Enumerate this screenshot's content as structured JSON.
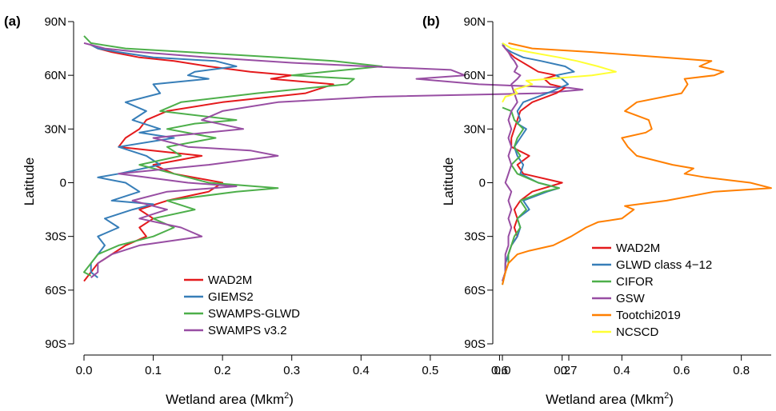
{
  "chart_data": [
    {
      "type": "line",
      "panel_label": "(a)",
      "xlabel": "Wetland area (Mkm",
      "xlabel_sup": "2",
      "xlabel_tail": ")",
      "ylabel": "Latitude",
      "xlim": [
        0,
        0.75
      ],
      "ylim": [
        -90,
        90
      ],
      "xticks": [
        0,
        0.1,
        0.2,
        0.3,
        0.4,
        0.5,
        0.6,
        0.7
      ],
      "xtick_labels": [
        "0.0",
        "0.1",
        "0.2",
        "0.3",
        "0.4",
        "0.5",
        "0.6",
        "0.7"
      ],
      "yticks": [
        90,
        60,
        30,
        0,
        -30,
        -60,
        -90
      ],
      "ytick_labels": [
        "90N",
        "60N",
        "30N",
        "0",
        "30S",
        "60S",
        "90S"
      ],
      "legend_position": "bottom-right",
      "series": [
        {
          "name": "WAD2M",
          "color": "#e41a1c",
          "lat": [
            -55,
            -50,
            -45,
            -40,
            -35,
            -30,
            -25,
            -20,
            -15,
            -10,
            -5,
            0,
            5,
            10,
            15,
            20,
            25,
            30,
            35,
            40,
            45,
            50,
            55,
            58,
            60,
            62,
            65,
            68,
            70,
            73,
            75,
            77
          ],
          "x": [
            0.0,
            0.01,
            0.02,
            0.04,
            0.06,
            0.09,
            0.08,
            0.1,
            0.08,
            0.12,
            0.18,
            0.2,
            0.13,
            0.1,
            0.17,
            0.05,
            0.06,
            0.08,
            0.09,
            0.12,
            0.2,
            0.32,
            0.36,
            0.27,
            0.3,
            0.24,
            0.18,
            0.13,
            0.08,
            0.04,
            0.02,
            0.01
          ]
        },
        {
          "name": "GIEMS2",
          "color": "#377eb8",
          "lat": [
            -53,
            -50,
            -45,
            -40,
            -35,
            -30,
            -25,
            -20,
            -15,
            -12,
            -10,
            -5,
            0,
            3,
            5,
            10,
            15,
            20,
            25,
            28,
            30,
            35,
            40,
            45,
            50,
            55,
            58,
            60,
            62,
            65,
            68,
            70,
            73,
            75,
            77
          ],
          "x": [
            0.02,
            0.01,
            0.01,
            0.02,
            0.03,
            0.02,
            0.05,
            0.03,
            0.07,
            0.1,
            0.04,
            0.08,
            0.06,
            0.02,
            0.05,
            0.11,
            0.09,
            0.05,
            0.13,
            0.08,
            0.11,
            0.07,
            0.09,
            0.06,
            0.11,
            0.1,
            0.18,
            0.15,
            0.16,
            0.22,
            0.19,
            0.1,
            0.05,
            0.02,
            0.01
          ]
        },
        {
          "name": "SWAMPS-GLWD",
          "color": "#4daf4a",
          "lat": [
            -52,
            -50,
            -45,
            -40,
            -35,
            -30,
            -25,
            -20,
            -15,
            -10,
            -5,
            -3,
            0,
            5,
            10,
            15,
            20,
            25,
            30,
            33,
            35,
            40,
            45,
            50,
            55,
            58,
            60,
            62,
            65,
            68,
            70,
            73,
            75,
            78,
            82
          ],
          "x": [
            0.01,
            0.0,
            0.01,
            0.02,
            0.05,
            0.1,
            0.13,
            0.1,
            0.16,
            0.12,
            0.22,
            0.28,
            0.18,
            0.13,
            0.08,
            0.14,
            0.12,
            0.19,
            0.12,
            0.16,
            0.22,
            0.11,
            0.14,
            0.25,
            0.38,
            0.39,
            0.3,
            0.35,
            0.43,
            0.36,
            0.28,
            0.15,
            0.06,
            0.01,
            0.0
          ]
        },
        {
          "name": "SWAMPS v3.2",
          "color": "#984ea3",
          "lat": [
            -53,
            -50,
            -45,
            -40,
            -35,
            -30,
            -25,
            -20,
            -15,
            -10,
            -5,
            -2,
            0,
            5,
            10,
            15,
            18,
            20,
            25,
            30,
            35,
            40,
            45,
            48,
            50,
            52,
            53,
            55,
            58,
            60,
            63,
            65,
            67,
            70,
            73,
            75,
            78
          ],
          "x": [
            0.01,
            0.02,
            0.02,
            0.04,
            0.08,
            0.17,
            0.14,
            0.08,
            0.12,
            0.07,
            0.12,
            0.22,
            0.15,
            0.05,
            0.18,
            0.28,
            0.24,
            0.15,
            0.1,
            0.23,
            0.17,
            0.2,
            0.28,
            0.42,
            0.66,
            0.72,
            0.7,
            0.57,
            0.48,
            0.55,
            0.53,
            0.41,
            0.3,
            0.18,
            0.08,
            0.03,
            0.0
          ]
        }
      ]
    },
    {
      "type": "line",
      "panel_label": "(b)",
      "xlabel": "Wetland area (Mkm",
      "xlabel_sup": "2",
      "xlabel_tail": ")",
      "ylabel": "Latitude",
      "xlim": [
        0,
        0.9
      ],
      "ylim": [
        -90,
        90
      ],
      "xticks": [
        0,
        0.2,
        0.4,
        0.6,
        0.8
      ],
      "xtick_labels": [
        "0.0",
        "0.2",
        "0.4",
        "0.6",
        "0.8"
      ],
      "yticks": [
        90,
        60,
        30,
        0,
        -30,
        -60,
        -90
      ],
      "ytick_labels": [
        "90N",
        "60N",
        "30N",
        "0",
        "30S",
        "60S",
        "90S"
      ],
      "legend_position": "bottom-right",
      "series": [
        {
          "name": "WAD2M",
          "color": "#e41a1c",
          "lat": [
            -55,
            -50,
            -45,
            -40,
            -35,
            -30,
            -25,
            -20,
            -15,
            -10,
            -5,
            0,
            5,
            10,
            15,
            20,
            25,
            30,
            35,
            40,
            45,
            50,
            53,
            55,
            58,
            60,
            62,
            65,
            68,
            70,
            73,
            75,
            77
          ],
          "x": [
            0.0,
            0.01,
            0.01,
            0.02,
            0.03,
            0.05,
            0.04,
            0.05,
            0.04,
            0.06,
            0.1,
            0.2,
            0.07,
            0.05,
            0.09,
            0.03,
            0.03,
            0.04,
            0.05,
            0.06,
            0.1,
            0.18,
            0.21,
            0.16,
            0.14,
            0.18,
            0.12,
            0.09,
            0.06,
            0.04,
            0.02,
            0.01,
            0.0
          ]
        },
        {
          "name": "GLWD class 4−12",
          "color": "#377eb8",
          "lat": [
            -55,
            -50,
            -45,
            -40,
            -35,
            -30,
            -25,
            -20,
            -15,
            -10,
            -5,
            -3,
            0,
            5,
            10,
            15,
            20,
            25,
            30,
            33,
            35,
            40,
            45,
            50,
            55,
            58,
            60,
            62,
            65,
            68,
            70,
            73,
            75,
            78
          ],
          "x": [
            0.0,
            0.01,
            0.01,
            0.02,
            0.03,
            0.05,
            0.06,
            0.05,
            0.09,
            0.07,
            0.15,
            0.19,
            0.12,
            0.06,
            0.07,
            0.05,
            0.04,
            0.06,
            0.08,
            0.05,
            0.06,
            0.05,
            0.07,
            0.15,
            0.22,
            0.2,
            0.18,
            0.24,
            0.21,
            0.13,
            0.07,
            0.03,
            0.01,
            0.0
          ]
        },
        {
          "name": "CIFOR",
          "color": "#4daf4a",
          "lat": [
            -57,
            -50,
            -45,
            -40,
            -35,
            -30,
            -25,
            -20,
            -15,
            -10,
            -5,
            -3,
            0,
            5,
            10,
            15,
            20,
            25,
            30,
            35,
            40,
            42
          ],
          "x": [
            0.0,
            0.01,
            0.02,
            0.02,
            0.03,
            0.04,
            0.06,
            0.05,
            0.08,
            0.06,
            0.14,
            0.19,
            0.12,
            0.05,
            0.03,
            0.06,
            0.04,
            0.05,
            0.07,
            0.04,
            0.03,
            0.0
          ]
        },
        {
          "name": "GSW",
          "color": "#984ea3",
          "lat": [
            -55,
            -50,
            -45,
            -40,
            -35,
            -30,
            -25,
            -20,
            -15,
            -10,
            -5,
            0,
            5,
            10,
            15,
            20,
            25,
            30,
            35,
            40,
            45,
            50,
            55,
            58,
            60,
            62,
            65,
            68,
            70,
            73,
            75,
            77
          ],
          "x": [
            0.0,
            0.01,
            0.01,
            0.01,
            0.02,
            0.02,
            0.03,
            0.02,
            0.03,
            0.02,
            0.03,
            0.01,
            0.02,
            0.03,
            0.02,
            0.03,
            0.02,
            0.03,
            0.02,
            0.03,
            0.05,
            0.04,
            0.03,
            0.05,
            0.06,
            0.04,
            0.05,
            0.04,
            0.03,
            0.02,
            0.01,
            0.0
          ]
        },
        {
          "name": "Tootchi2019",
          "color": "#ff7f00",
          "lat": [
            -57,
            -50,
            -45,
            -40,
            -38,
            -35,
            -30,
            -25,
            -22,
            -20,
            -15,
            -13,
            -10,
            -5,
            -3,
            0,
            3,
            5,
            8,
            10,
            15,
            20,
            25,
            28,
            30,
            35,
            40,
            45,
            50,
            55,
            58,
            60,
            62,
            65,
            68,
            70,
            73,
            75,
            78
          ],
          "x": [
            0.0,
            0.01,
            0.02,
            0.05,
            0.09,
            0.17,
            0.23,
            0.28,
            0.32,
            0.4,
            0.44,
            0.41,
            0.55,
            0.71,
            0.9,
            0.83,
            0.68,
            0.61,
            0.64,
            0.57,
            0.45,
            0.42,
            0.4,
            0.48,
            0.5,
            0.49,
            0.41,
            0.45,
            0.6,
            0.62,
            0.61,
            0.71,
            0.74,
            0.66,
            0.7,
            0.54,
            0.3,
            0.1,
            0.02
          ]
        },
        {
          "name": "NCSCD",
          "color": "#ffff33",
          "lat": [
            45,
            48,
            50,
            52,
            55,
            57,
            60,
            62,
            65,
            68,
            70,
            73,
            75,
            78
          ],
          "x": [
            0.0,
            0.01,
            0.05,
            0.04,
            0.1,
            0.08,
            0.3,
            0.38,
            0.32,
            0.25,
            0.19,
            0.09,
            0.03,
            0.0
          ]
        }
      ]
    }
  ]
}
